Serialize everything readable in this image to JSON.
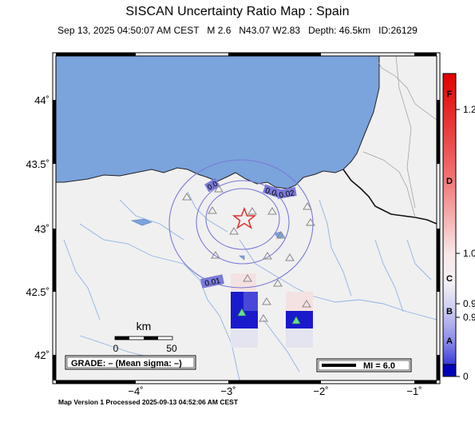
{
  "header": {
    "title": "SISCAN Uncertainty Ratio Map : Spain",
    "subtitle": "Sep 13, 2025 04:50:07 AM CEST   M 2.6   N43.07 W2.83   Depth: 46.5km   ID:26129"
  },
  "footer": {
    "text": "Map Version 1 Processed 2025-09-13 04:52:06 AM CEST"
  },
  "axes": {
    "lat_ticks": [
      "44˚",
      "43.5˚",
      "43˚",
      "42.5˚",
      "42˚"
    ],
    "lon_ticks": [
      "−4˚",
      "−3˚",
      "−2˚",
      "−1˚"
    ]
  },
  "contours": {
    "labels": [
      "0.01",
      "0.08",
      "0.02",
      "0.0"
    ]
  },
  "scalebar": {
    "unit": "km",
    "start": "0",
    "end": "50"
  },
  "grade_box": {
    "text": "GRADE: – (Mean sigma: –)"
  },
  "mi_legend": {
    "text": "MI = 6.0"
  },
  "colorbar": {
    "labels": [
      {
        "text": "1.2",
        "color": "#000000"
      },
      {
        "text": "1.0",
        "color": "#000000"
      },
      {
        "text": "0.9",
        "color": "#000000"
      },
      {
        "text": "0.9",
        "color": "#000000"
      },
      {
        "text": "0",
        "color": "#000000"
      }
    ],
    "grades": [
      "F",
      "D",
      "C",
      "B",
      "A"
    ]
  },
  "colors": {
    "sea": "#7ba3dc",
    "land": "#f0f0f0",
    "rivers": "#8fb2e6",
    "contours": "#7a7ad8",
    "epicenter": "#e03030",
    "station": "#888888",
    "high_uncertainty": "#1a1acc"
  }
}
